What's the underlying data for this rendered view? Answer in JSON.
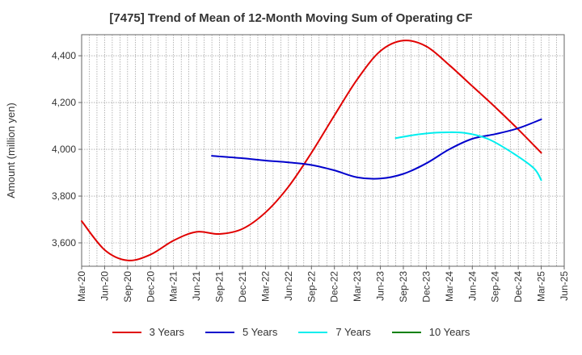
{
  "chart_data": {
    "type": "line",
    "title": "[7475]  Trend of Mean of 12-Month Moving Sum of Operating CF",
    "xlabel": "",
    "ylabel": "Amount (million yen)",
    "ylim": [
      3500,
      4490
    ],
    "yticks": [
      3600,
      3800,
      4000,
      4200,
      4400
    ],
    "ytick_labels": [
      "3,600",
      "3,800",
      "4,000",
      "4,200",
      "4,400"
    ],
    "x_start": "Mar-20",
    "x_period_count": 63,
    "x_tick_labels": [
      "Mar-20",
      "Jun-20",
      "Sep-20",
      "Dec-20",
      "Mar-21",
      "Jun-21",
      "Sep-21",
      "Dec-21",
      "Mar-22",
      "Jun-22",
      "Sep-22",
      "Dec-22",
      "Mar-23",
      "Jun-23",
      "Sep-23",
      "Dec-23",
      "Mar-24",
      "Jun-24",
      "Sep-24",
      "Dec-24",
      "Mar-25",
      "Jun-25"
    ],
    "grid": true,
    "series": [
      {
        "name": "3 Years",
        "color": "#e00000",
        "points": [
          [
            0,
            3693
          ],
          [
            3,
            3570
          ],
          [
            6,
            3525
          ],
          [
            9,
            3550
          ],
          [
            12,
            3610
          ],
          [
            15,
            3647
          ],
          [
            18,
            3638
          ],
          [
            21,
            3660
          ],
          [
            24,
            3730
          ],
          [
            27,
            3840
          ],
          [
            30,
            3985
          ],
          [
            33,
            4145
          ],
          [
            36,
            4300
          ],
          [
            39,
            4420
          ],
          [
            42,
            4465
          ],
          [
            45,
            4440
          ],
          [
            48,
            4360
          ],
          [
            51,
            4270
          ],
          [
            54,
            4180
          ],
          [
            57,
            4085
          ],
          [
            60,
            3985
          ]
        ]
      },
      {
        "name": "5 Years",
        "color": "#0000cc",
        "points": [
          [
            17,
            3972
          ],
          [
            21,
            3962
          ],
          [
            24,
            3952
          ],
          [
            27,
            3944
          ],
          [
            30,
            3933
          ],
          [
            33,
            3910
          ],
          [
            36,
            3880
          ],
          [
            39,
            3875
          ],
          [
            42,
            3895
          ],
          [
            45,
            3940
          ],
          [
            48,
            4000
          ],
          [
            51,
            4045
          ],
          [
            54,
            4065
          ],
          [
            57,
            4090
          ],
          [
            60,
            4128
          ]
        ]
      },
      {
        "name": "7 Years",
        "color": "#00eeee",
        "points": [
          [
            41,
            4048
          ],
          [
            44,
            4064
          ],
          [
            47,
            4072
          ],
          [
            50,
            4070
          ],
          [
            53,
            4045
          ],
          [
            56,
            3990
          ],
          [
            59,
            3920
          ],
          [
            60,
            3868
          ]
        ]
      },
      {
        "name": "10 Years",
        "color": "#008000",
        "points": []
      }
    ]
  }
}
